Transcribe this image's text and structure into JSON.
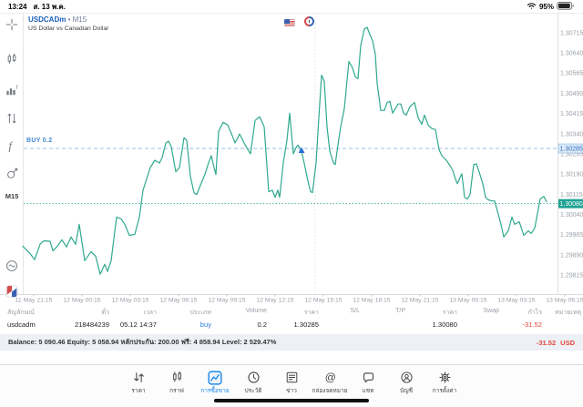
{
  "status_bar": {
    "time": "13:24",
    "date": "ส. 13 พ.ค.",
    "battery_percent": "95%"
  },
  "chart_header": {
    "symbol": "USDCADm",
    "separator": "•",
    "timeframe": "M15",
    "description": "US Dollar vs Canadian Dollar"
  },
  "sidebar": {
    "timeframe_label": "M15"
  },
  "chart_data": {
    "type": "line",
    "title": "USDCADm M15 price line",
    "line_color": "#2fa98e",
    "buy_line": {
      "label": "BUY 0.2",
      "price": 1.30285,
      "color": "#8fb6e2",
      "text_color": "#2f6fbe",
      "badge_fill": "#dbe9f8"
    },
    "current_price": 1.3008,
    "current_price_color": "#1fa294",
    "trade_marker": {
      "x": 331,
      "price": 1.30275,
      "color": "#2a6fd4"
    },
    "open_time_line_x": 346,
    "y_range": [
      1.29744,
      1.30789
    ],
    "y_ticks": [
      1.30715,
      1.3064,
      1.30565,
      1.3049,
      1.30415,
      1.3034,
      1.30265,
      1.3019,
      1.30115,
      1.3004,
      1.29965,
      1.2989,
      1.29815
    ],
    "x_labels": [
      "11 May 21:15",
      "12 May 00:15",
      "12 May 03:15",
      "12 May 06:15",
      "12 May 09:15",
      "12 May 12:15",
      "12 May 15:15",
      "12 May 18:15",
      "12 May 21:15",
      "13 May 00:15",
      "13 May 03:15",
      "13 May 06:15"
    ],
    "series": [
      {
        "name": "USDCADm close",
        "points": [
          [
            25,
            1.29922
          ],
          [
            33,
            1.29895
          ],
          [
            38,
            1.29872
          ],
          [
            44,
            1.29929
          ],
          [
            48,
            1.29942
          ],
          [
            55,
            1.2994
          ],
          [
            58,
            1.29905
          ],
          [
            63,
            1.29922
          ],
          [
            68,
            1.29946
          ],
          [
            73,
            1.29919
          ],
          [
            78,
            1.29956
          ],
          [
            83,
            1.29929
          ],
          [
            87,
            1.30003
          ],
          [
            93,
            1.29868
          ],
          [
            100,
            1.29902
          ],
          [
            105,
            1.29885
          ],
          [
            110,
            1.29818
          ],
          [
            115,
            1.29855
          ],
          [
            118,
            1.29828
          ],
          [
            122,
            1.29868
          ],
          [
            128,
            1.3003
          ],
          [
            133,
            1.30023
          ],
          [
            137,
            1.30003
          ],
          [
            142,
            1.29962
          ],
          [
            148,
            1.29966
          ],
          [
            153,
            1.3003
          ],
          [
            157,
            1.3013
          ],
          [
            165,
            1.30214
          ],
          [
            170,
            1.30241
          ],
          [
            175,
            1.30231
          ],
          [
            178,
            1.30251
          ],
          [
            182,
            1.30305
          ],
          [
            185,
            1.30312
          ],
          [
            188,
            1.30292
          ],
          [
            193,
            1.30198
          ],
          [
            197,
            1.30214
          ],
          [
            202,
            1.30325
          ],
          [
            205,
            1.30315
          ],
          [
            209,
            1.30181
          ],
          [
            213,
            1.3012
          ],
          [
            216,
            1.30114
          ],
          [
            220,
            1.30148
          ],
          [
            225,
            1.30189
          ],
          [
            229,
            1.30232
          ],
          [
            232,
            1.30258
          ],
          [
            235,
            1.30214
          ],
          [
            237,
            1.30188
          ],
          [
            240,
            1.30349
          ],
          [
            245,
            1.30382
          ],
          [
            250,
            1.30372
          ],
          [
            255,
            1.30332
          ],
          [
            258,
            1.30305
          ],
          [
            263,
            1.30339
          ],
          [
            268,
            1.30305
          ],
          [
            272,
            1.30281
          ],
          [
            275,
            1.30265
          ],
          [
            280,
            1.30389
          ],
          [
            285,
            1.30403
          ],
          [
            290,
            1.30366
          ],
          [
            295,
            1.30124
          ],
          [
            299,
            1.3013
          ],
          [
            302,
            1.30104
          ],
          [
            305,
            1.3013
          ],
          [
            307,
            1.30104
          ],
          [
            311,
            1.30232
          ],
          [
            315,
            1.30315
          ],
          [
            318,
            1.30416
          ],
          [
            322,
            1.30265
          ],
          [
            325,
            1.30288
          ],
          [
            327,
            1.30298
          ],
          [
            331,
            1.30275
          ],
          [
            335,
            1.30214
          ],
          [
            338,
            1.30164
          ],
          [
            341,
            1.30124
          ],
          [
            343,
            1.30121
          ],
          [
            347,
            1.30232
          ],
          [
            350,
            1.30399
          ],
          [
            353,
            1.30557
          ],
          [
            356,
            1.30534
          ],
          [
            359,
            1.30366
          ],
          [
            362,
            1.30275
          ],
          [
            366,
            1.30232
          ],
          [
            368,
            1.30225
          ],
          [
            371,
            1.30298
          ],
          [
            374,
            1.30366
          ],
          [
            378,
            1.30433
          ],
          [
            383,
            1.30608
          ],
          [
            387,
            1.30584
          ],
          [
            390,
            1.30551
          ],
          [
            393,
            1.30544
          ],
          [
            396,
            1.30668
          ],
          [
            400,
            1.30729
          ],
          [
            403,
            1.30735
          ],
          [
            406,
            1.30708
          ],
          [
            409,
            1.30685
          ],
          [
            412,
            1.30635
          ],
          [
            414,
            1.30527
          ],
          [
            418,
            1.30426
          ],
          [
            422,
            1.30426
          ],
          [
            425,
            1.30456
          ],
          [
            428,
            1.3046
          ],
          [
            431,
            1.30416
          ],
          [
            434,
            1.30433
          ],
          [
            437,
            1.3045
          ],
          [
            440,
            1.3045
          ],
          [
            443,
            1.30416
          ],
          [
            446,
            1.30409
          ],
          [
            450,
            1.3044
          ],
          [
            455,
            1.30456
          ],
          [
            459,
            1.30399
          ],
          [
            463,
            1.30375
          ],
          [
            466,
            1.30409
          ],
          [
            470,
            1.30372
          ],
          [
            474,
            1.30359
          ],
          [
            478,
            1.30355
          ],
          [
            482,
            1.30281
          ],
          [
            485,
            1.30258
          ],
          [
            490,
            1.30241
          ],
          [
            494,
            1.30221
          ],
          [
            497,
            1.30204
          ],
          [
            500,
            1.30171
          ],
          [
            502,
            1.30154
          ],
          [
            505,
            1.30177
          ],
          [
            507,
            1.30191
          ],
          [
            510,
            1.30104
          ],
          [
            513,
            1.30097
          ],
          [
            516,
            1.30114
          ],
          [
            520,
            1.30225
          ],
          [
            523,
            1.30228
          ],
          [
            526,
            1.30198
          ],
          [
            530,
            1.30154
          ],
          [
            533,
            1.30104
          ],
          [
            536,
            1.30094
          ],
          [
            540,
            1.3009
          ],
          [
            543,
            1.3009
          ],
          [
            547,
            1.3004
          ],
          [
            550,
            1.30003
          ],
          [
            553,
            1.29956
          ],
          [
            558,
            1.29979
          ],
          [
            562,
            1.3003
          ],
          [
            565,
            1.30003
          ],
          [
            570,
            1.30013
          ],
          [
            575,
            1.29962
          ],
          [
            580,
            1.29979
          ],
          [
            583,
            1.29969
          ],
          [
            587,
            1.29989
          ],
          [
            593,
            1.30097
          ],
          [
            597,
            1.30107
          ],
          [
            600,
            1.30087
          ]
        ]
      }
    ]
  },
  "positions_table": {
    "headers": [
      "สัญลักษณ์",
      "ตั๋ว",
      "เวลา",
      "ประเภท",
      "Volume",
      "ราคา",
      "S/L",
      "T/P",
      "ราคา",
      "Swap",
      "กำไร",
      "หมายเหตุ"
    ],
    "row": {
      "symbol": "usdcadm",
      "ticket": "218484239",
      "time": "05.12 14:37",
      "type": "buy",
      "volume": "0.2",
      "open_price": "1.30285",
      "sl": "",
      "tp": "",
      "current_price": "1.30080",
      "swap": "",
      "profit": "-31.52",
      "comment": ""
    }
  },
  "balance_bar": {
    "summary": "Balance: 5 090.46 Equity: 5 058.94 หลักประกัน: 200.00 ฟรี: 4 858.94 Level: 2 529.47%",
    "profit": "-31.52",
    "currency": "USD"
  },
  "tab_bar": {
    "items": [
      {
        "label": "ราคา"
      },
      {
        "label": "กราฟ"
      },
      {
        "label": "การซื้อขาย"
      },
      {
        "label": "ประวัติ"
      },
      {
        "label": "ข่าว"
      },
      {
        "label": "กล่องจดหมาย"
      },
      {
        "label": "แชท"
      },
      {
        "label": "บัญชี"
      },
      {
        "label": "การตั้งค่า"
      }
    ],
    "active_index": 2
  }
}
